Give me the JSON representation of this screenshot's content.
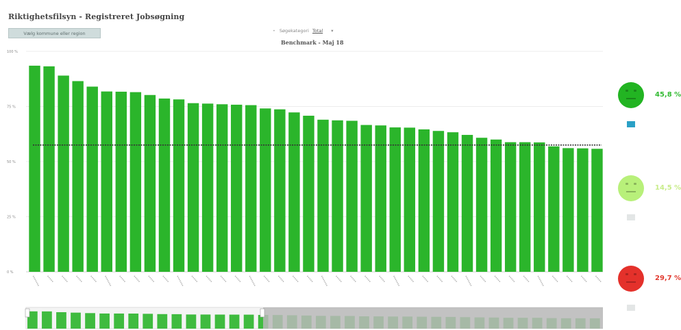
{
  "app": {
    "title": "Riktighetsfilsyn - Registreret Jobsøgning",
    "region_button": "Vælg kommune eller region",
    "selector_label": "Søgekategori",
    "selector_value": "Total"
  },
  "chart_data": {
    "type": "bar",
    "title": "Benchmark - Maj 18",
    "ylim": [
      0,
      100
    ],
    "yticks": [
      0,
      25,
      50,
      75,
      100
    ],
    "ytick_labels": [
      "0 %",
      "25 %",
      "50 %",
      "75 %",
      "100 %"
    ],
    "benchmark_line": 57.5,
    "bar_color": "#2bb52b",
    "line_color": "#333333",
    "categories": [
      "",
      "",
      "",
      "",
      "",
      "",
      "",
      "",
      "",
      "",
      "",
      "",
      "",
      "",
      "",
      "",
      "",
      "",
      "",
      "",
      "",
      "",
      "",
      "",
      "",
      "",
      "",
      "",
      "",
      "",
      "",
      "",
      "",
      "",
      "",
      "",
      "",
      "",
      "",
      ""
    ],
    "values": [
      93.5,
      93.2,
      89,
      86.5,
      84,
      81.8,
      81.7,
      81.5,
      80.2,
      78.6,
      78.2,
      76.5,
      76.3,
      76,
      75.8,
      75.6,
      74.1,
      73.7,
      72.3,
      70.8,
      69,
      68.7,
      68.5,
      66.6,
      66.4,
      65.5,
      65.4,
      64.6,
      63.9,
      63.3,
      62.1,
      60.8,
      60,
      58.8,
      58.8,
      58.7,
      56.9,
      56.1,
      56.0,
      55.8
    ],
    "summary": [
      {
        "face": "happy",
        "color": "#22b422",
        "value": "45,8 %",
        "value_color": "#33bb33",
        "legend_color": "#2aa0c6"
      },
      {
        "face": "neutral",
        "color": "#b8f07a",
        "value": "14,5 %",
        "value_color": "#c8ec8a",
        "legend_color": "#e3e6e6"
      },
      {
        "face": "sad",
        "color": "#e4312b",
        "value": "29,7 %",
        "value_color": "#e13a2f",
        "legend_color": "#e3e6e6"
      }
    ]
  }
}
